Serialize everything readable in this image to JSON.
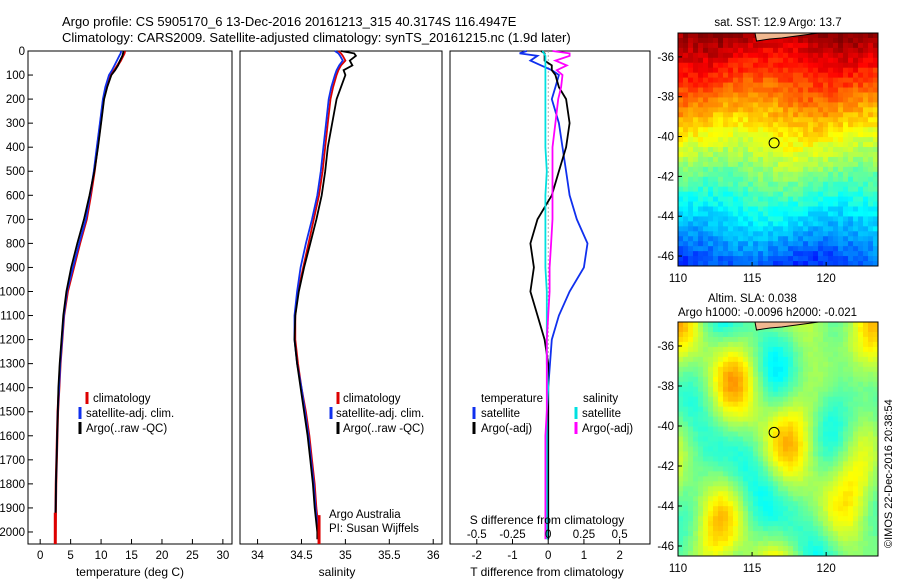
{
  "header": {
    "title_line1": "Argo profile: CS 5905170_6 13-Dec-2016 20161213_315 40.3174S 116.4947E",
    "title_line2": "Climatology: CARS2009. Satellite-adjusted climatology: synTS_20161215.nc (1.9d later)"
  },
  "credits": {
    "org": "Argo Australia",
    "pi": "PI: Susan Wijffels",
    "stamp": "©IMOS 22-Dec-2016 20:38:54"
  },
  "colors": {
    "climatology": "#dd0000",
    "satellite": "#1030ee",
    "argo": "#000000",
    "sal_satellite": "#00e0e0",
    "sal_argo": "#ff00ff",
    "land": "#f0b890"
  },
  "chart_data": [
    {
      "type": "line",
      "id": "temperature",
      "xlabel": "temperature (deg C)",
      "xlim": [
        -2,
        31.5
      ],
      "xticks": [
        "0",
        "5",
        "10",
        "15",
        "20",
        "25",
        "30"
      ],
      "ylim": [
        0,
        2050
      ],
      "yticks": [
        "0",
        "100",
        "200",
        "300",
        "400",
        "500",
        "600",
        "700",
        "800",
        "900",
        "1000",
        "1100",
        "1200",
        "1300",
        "1400",
        "1500",
        "1600",
        "1700",
        "1800",
        "1900",
        "2000"
      ],
      "y_reversed": true,
      "legend": [
        "climatology",
        "satellite-adj. clim.",
        "Argo(..raw -QC)"
      ],
      "depth": [
        0,
        10,
        20,
        40,
        60,
        80,
        100,
        150,
        200,
        300,
        400,
        500,
        600,
        700,
        800,
        900,
        1000,
        1100,
        1200,
        1300,
        1400,
        1500,
        1600,
        1700,
        1800,
        1900,
        2000,
        2030
      ],
      "series": [
        {
          "name": "climatology",
          "values": [
            13.9,
            13.8,
            13.6,
            13.2,
            12.7,
            12.2,
            11.6,
            10.9,
            10.4,
            9.9,
            9.4,
            8.9,
            8.3,
            7.6,
            6.5,
            5.5,
            4.5,
            3.9,
            3.6,
            3.3,
            3.1,
            2.9,
            2.8,
            2.7,
            2.6,
            2.55,
            2.5,
            2.48
          ]
        },
        {
          "name": "satellite-adj. clim.",
          "values": [
            13.3,
            13.2,
            13.0,
            12.6,
            12.2,
            11.8,
            11.3,
            10.7,
            10.3,
            9.8,
            9.3,
            8.8,
            8.2,
            7.5,
            6.4,
            5.4,
            4.4,
            3.9,
            3.6,
            3.3,
            3.1,
            2.9,
            2.8,
            2.7,
            2.6,
            2.55,
            2.5,
            2.48
          ]
        },
        {
          "name": "Argo(..raw -QC)",
          "values": [
            13.7,
            13.6,
            13.5,
            13.1,
            12.8,
            12.3,
            11.7,
            11.0,
            10.5,
            10.0,
            9.5,
            8.9,
            8.1,
            7.2,
            6.1,
            5.1,
            4.3,
            3.8,
            3.5,
            3.2,
            3.0,
            2.9,
            2.8,
            2.7,
            2.6,
            2.55,
            2.5,
            2.48
          ]
        }
      ]
    },
    {
      "type": "line",
      "id": "salinity",
      "xlabel": "salinity",
      "xlim": [
        33.8,
        36.1
      ],
      "xticks": [
        "34",
        "34.5",
        "35",
        "35.5",
        "36"
      ],
      "ylim": [
        0,
        2050
      ],
      "y_reversed": true,
      "legend": [
        "climatology",
        "satellite-adj. clim.",
        "Argo(..raw -QC)"
      ],
      "depth": [
        0,
        10,
        20,
        40,
        60,
        80,
        100,
        150,
        200,
        300,
        400,
        500,
        600,
        700,
        800,
        900,
        1000,
        1100,
        1200,
        1300,
        1400,
        1500,
        1600,
        1700,
        1800,
        1900,
        2000,
        2030
      ],
      "series": [
        {
          "name": "climatology",
          "values": [
            34.92,
            34.95,
            34.97,
            35.0,
            34.95,
            34.92,
            34.9,
            34.86,
            34.83,
            34.8,
            34.77,
            34.74,
            34.7,
            34.64,
            34.58,
            34.52,
            34.46,
            34.43,
            34.43,
            34.46,
            34.5,
            34.55,
            34.59,
            34.62,
            34.65,
            34.67,
            34.7,
            34.7
          ]
        },
        {
          "name": "satellite-adj. clim.",
          "values": [
            34.88,
            34.92,
            34.94,
            34.97,
            34.93,
            34.9,
            34.88,
            34.84,
            34.81,
            34.78,
            34.75,
            34.72,
            34.68,
            34.62,
            34.55,
            34.49,
            34.45,
            34.42,
            34.42,
            34.45,
            34.5,
            34.54,
            34.58,
            34.61,
            34.64,
            34.66,
            34.69,
            34.69
          ]
        },
        {
          "name": "Argo(..raw -QC)",
          "values": [
            34.95,
            35.1,
            35.12,
            35.05,
            35.08,
            34.98,
            35.0,
            34.95,
            34.9,
            34.85,
            34.8,
            34.77,
            34.73,
            34.67,
            34.6,
            34.53,
            34.47,
            34.43,
            34.42,
            34.45,
            34.49,
            34.53,
            34.57,
            34.6,
            34.63,
            34.65,
            34.68,
            34.68
          ]
        }
      ]
    },
    {
      "type": "line",
      "id": "difference",
      "xlabel": "T difference from climatology",
      "xlabel2": "S difference from climatology",
      "xlim": [
        -2.75,
        2.85
      ],
      "xticks": [
        "-2",
        "-1",
        "0",
        "1",
        "2"
      ],
      "xticks2": [
        "-0.5",
        "-0.25",
        "0",
        "0.25",
        "0.5"
      ],
      "ylim": [
        0,
        2050
      ],
      "y_reversed": true,
      "legend_temperature": {
        "title": "temperature",
        "entries": [
          "satellite",
          "Argo(-adj)"
        ]
      },
      "legend_salinity": {
        "title": "salinity",
        "entries": [
          "satellite",
          "Argo(-adj)"
        ]
      },
      "depth": [
        0,
        10,
        20,
        40,
        60,
        80,
        100,
        150,
        200,
        300,
        400,
        500,
        600,
        700,
        800,
        900,
        1000,
        1100,
        1200,
        1300,
        1400,
        1500,
        1600,
        1700,
        1800,
        1900,
        2000,
        2030
      ],
      "series": [
        {
          "name": "T satellite",
          "values": [
            -0.6,
            -0.8,
            -0.3,
            -0.5,
            -0.2,
            0.1,
            0.3,
            0.2,
            0.1,
            0.3,
            0.4,
            0.5,
            0.6,
            0.8,
            1.1,
            1.0,
            0.6,
            0.3,
            0.1,
            0.05,
            0.0,
            0.0,
            0.0,
            0.0,
            0.0,
            0.0,
            0.0,
            0.0
          ]
        },
        {
          "name": "T Argo(-adj)",
          "values": [
            -0.2,
            -0.1,
            -0.1,
            -0.1,
            0.1,
            0.1,
            0.2,
            0.3,
            0.5,
            0.6,
            0.5,
            0.3,
            0.1,
            -0.3,
            -0.5,
            -0.4,
            -0.5,
            -0.3,
            -0.1,
            0.0,
            0.0,
            0.0,
            0.0,
            0.0,
            0.0,
            0.0,
            0.0,
            0.0
          ]
        },
        {
          "name": "S satellite",
          "values": [
            -0.04,
            -0.03,
            -0.02,
            -0.02,
            -0.02,
            -0.02,
            -0.02,
            -0.02,
            -0.02,
            -0.02,
            -0.02,
            -0.01,
            -0.02,
            -0.02,
            -0.02,
            -0.02,
            -0.01,
            -0.01,
            -0.01,
            -0.01,
            0.0,
            -0.01,
            -0.01,
            -0.01,
            -0.01,
            -0.01,
            -0.01,
            -0.01
          ]
        },
        {
          "name": "S Argo(-adj)",
          "values": [
            0.03,
            0.15,
            0.15,
            0.05,
            0.13,
            0.06,
            0.1,
            0.09,
            0.07,
            0.05,
            0.03,
            0.03,
            0.03,
            0.03,
            0.02,
            0.01,
            0.01,
            0.0,
            -0.01,
            -0.01,
            -0.01,
            -0.01,
            -0.02,
            -0.02,
            -0.02,
            -0.02,
            -0.02,
            -0.02
          ]
        }
      ]
    },
    {
      "type": "heatmap",
      "id": "sst-map",
      "title": "sat. SST: 12.9  Argo: 13.7",
      "xlim": [
        110,
        123.5
      ],
      "ylim": [
        -46.5,
        -34.8
      ],
      "xticks": [
        "110",
        "115",
        "120"
      ],
      "yticks": [
        "-36",
        "-38",
        "-40",
        "-42",
        "-44",
        "-46"
      ],
      "marker": {
        "lon": 116.49,
        "lat": -40.32
      }
    },
    {
      "type": "heatmap",
      "id": "sla-map",
      "title": "Altim. SLA: 0.038",
      "subtitle": "Argo h1000: -0.0096 h2000: -0.021",
      "xlim": [
        110,
        123.5
      ],
      "ylim": [
        -46.5,
        -34.8
      ],
      "xticks": [
        "110",
        "115",
        "120"
      ],
      "yticks": [
        "-36",
        "-38",
        "-40",
        "-42",
        "-44",
        "-46"
      ],
      "marker": {
        "lon": 116.49,
        "lat": -40.32
      }
    }
  ]
}
